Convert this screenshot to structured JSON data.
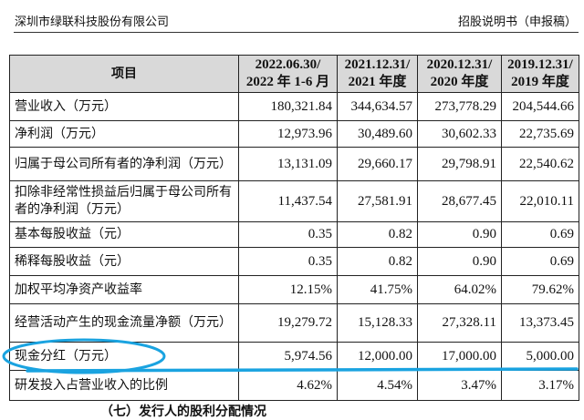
{
  "header": {
    "company": "深圳市绿联科技股份有限公司",
    "doc_type": "招股说明书（申报稿）"
  },
  "table": {
    "columns": [
      "项目",
      [
        "2022.06.30/",
        "2022 年 1-6 月"
      ],
      [
        "2021.12.31/",
        "2021 年度"
      ],
      [
        "2020.12.31/",
        "2020 年度"
      ],
      [
        "2019.12.31/",
        "2019 年度"
      ]
    ],
    "rows": [
      {
        "label": "营业收入（万元）",
        "values": [
          "180,321.84",
          "344,634.57",
          "273,778.29",
          "204,544.66"
        ]
      },
      {
        "label": "净利润（万元）",
        "values": [
          "12,973.96",
          "30,489.60",
          "30,602.33",
          "22,735.69"
        ]
      },
      {
        "label": "归属于母公司所有者的净利润（万元）",
        "values": [
          "13,131.09",
          "29,660.17",
          "29,798.91",
          "22,540.62"
        ]
      },
      {
        "label": "扣除非经常性损益后归属于母公司所有者的净利润（万元）",
        "values": [
          "11,437.54",
          "27,581.91",
          "28,677.45",
          "22,010.11"
        ]
      },
      {
        "label": "基本每股收益（元）",
        "values": [
          "0.35",
          "0.82",
          "0.90",
          "0.69"
        ]
      },
      {
        "label": "稀释每股收益（元）",
        "values": [
          "0.35",
          "0.82",
          "0.90",
          "0.69"
        ]
      },
      {
        "label": "加权平均净资产收益率",
        "values": [
          "12.15%",
          "41.75%",
          "64.02%",
          "79.62%"
        ]
      },
      {
        "label": "经营活动产生的现金流量净额（万元）",
        "values": [
          "19,279.72",
          "15,128.33",
          "27,328.11",
          "13,373.45"
        ]
      },
      {
        "label": "现金分红（万元）",
        "values": [
          "5,974.56",
          "12,000.00",
          "17,000.00",
          "5,000.00"
        ]
      },
      {
        "label": "研发投入占营业收入的比例",
        "values": [
          "4.62%",
          "4.54%",
          "3.47%",
          "3.17%"
        ]
      }
    ]
  },
  "footer_partial": "（七）发行人的股利分配情况",
  "annotation": {
    "color": "#1aa3e0",
    "highlighted_row": "现金分红（万元）"
  }
}
